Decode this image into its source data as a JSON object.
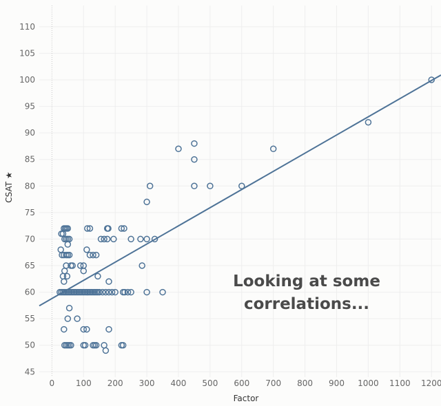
{
  "colors": {
    "points": "#4e7397",
    "trend": "#4e7397"
  },
  "chart_data": {
    "type": "scatter",
    "xlabel": "Factor",
    "ylabel": "CSAT ★",
    "xlim": [
      -40,
      1230
    ],
    "ylim": [
      44,
      114
    ],
    "xticks": [
      0,
      100,
      200,
      300,
      400,
      500,
      600,
      700,
      800,
      900,
      1000,
      1100,
      1200
    ],
    "yticks": [
      45,
      50,
      55,
      60,
      65,
      70,
      75,
      80,
      85,
      90,
      95,
      100,
      105,
      110
    ],
    "grid": true,
    "trendline": {
      "slope": 0.03423,
      "intercept": 58.8
    },
    "annotation": [
      "Looking at some",
      "correlations..."
    ],
    "points": [
      [
        1200,
        100
      ],
      [
        1000,
        92
      ],
      [
        700,
        87
      ],
      [
        400,
        87
      ],
      [
        450,
        88
      ],
      [
        450,
        85
      ],
      [
        450,
        80
      ],
      [
        500,
        80
      ],
      [
        600,
        80
      ],
      [
        310,
        80
      ],
      [
        300,
        77
      ],
      [
        280,
        70
      ],
      [
        300,
        70
      ],
      [
        325,
        70
      ],
      [
        250,
        70
      ],
      [
        285,
        65
      ],
      [
        300,
        60
      ],
      [
        350,
        60
      ],
      [
        230,
        60
      ],
      [
        240,
        60
      ],
      [
        250,
        60
      ],
      [
        225,
        60
      ],
      [
        220,
        72
      ],
      [
        228,
        72
      ],
      [
        175,
        72
      ],
      [
        178,
        72
      ],
      [
        112,
        72
      ],
      [
        120,
        72
      ],
      [
        155,
        70
      ],
      [
        165,
        70
      ],
      [
        175,
        70
      ],
      [
        195,
        70
      ],
      [
        110,
        68
      ],
      [
        120,
        67
      ],
      [
        130,
        67
      ],
      [
        140,
        67
      ],
      [
        145,
        63
      ],
      [
        180,
        62
      ],
      [
        35,
        63
      ],
      [
        48,
        63
      ],
      [
        90,
        65
      ],
      [
        100,
        65
      ],
      [
        60,
        65
      ],
      [
        65,
        65
      ],
      [
        45,
        65
      ],
      [
        100,
        64
      ],
      [
        40,
        64
      ],
      [
        38,
        62
      ],
      [
        25,
        60
      ],
      [
        30,
        60
      ],
      [
        35,
        60
      ],
      [
        40,
        60
      ],
      [
        45,
        60
      ],
      [
        50,
        60
      ],
      [
        55,
        60
      ],
      [
        60,
        60
      ],
      [
        65,
        60
      ],
      [
        70,
        60
      ],
      [
        75,
        60
      ],
      [
        80,
        60
      ],
      [
        85,
        60
      ],
      [
        90,
        60
      ],
      [
        95,
        60
      ],
      [
        100,
        60
      ],
      [
        105,
        60
      ],
      [
        110,
        60
      ],
      [
        115,
        60
      ],
      [
        120,
        60
      ],
      [
        125,
        60
      ],
      [
        130,
        60
      ],
      [
        135,
        60
      ],
      [
        140,
        60
      ],
      [
        145,
        60
      ],
      [
        150,
        60
      ],
      [
        160,
        60
      ],
      [
        170,
        60
      ],
      [
        180,
        60
      ],
      [
        190,
        60
      ],
      [
        200,
        60
      ],
      [
        30,
        71
      ],
      [
        35,
        71
      ],
      [
        28,
        68
      ],
      [
        32,
        67
      ],
      [
        38,
        67
      ],
      [
        45,
        67
      ],
      [
        50,
        67
      ],
      [
        55,
        67
      ],
      [
        38,
        72
      ],
      [
        42,
        72
      ],
      [
        46,
        72
      ],
      [
        50,
        72
      ],
      [
        40,
        70
      ],
      [
        45,
        70
      ],
      [
        50,
        70
      ],
      [
        55,
        70
      ],
      [
        50,
        69
      ],
      [
        55,
        57
      ],
      [
        80,
        55
      ],
      [
        50,
        55
      ],
      [
        38,
        53
      ],
      [
        100,
        53
      ],
      [
        110,
        53
      ],
      [
        180,
        53
      ],
      [
        40,
        50
      ],
      [
        45,
        50
      ],
      [
        50,
        50
      ],
      [
        55,
        50
      ],
      [
        60,
        50
      ],
      [
        100,
        50
      ],
      [
        105,
        50
      ],
      [
        130,
        50
      ],
      [
        135,
        50
      ],
      [
        140,
        50
      ],
      [
        165,
        50
      ],
      [
        220,
        50
      ],
      [
        225,
        50
      ],
      [
        170,
        49
      ]
    ]
  }
}
